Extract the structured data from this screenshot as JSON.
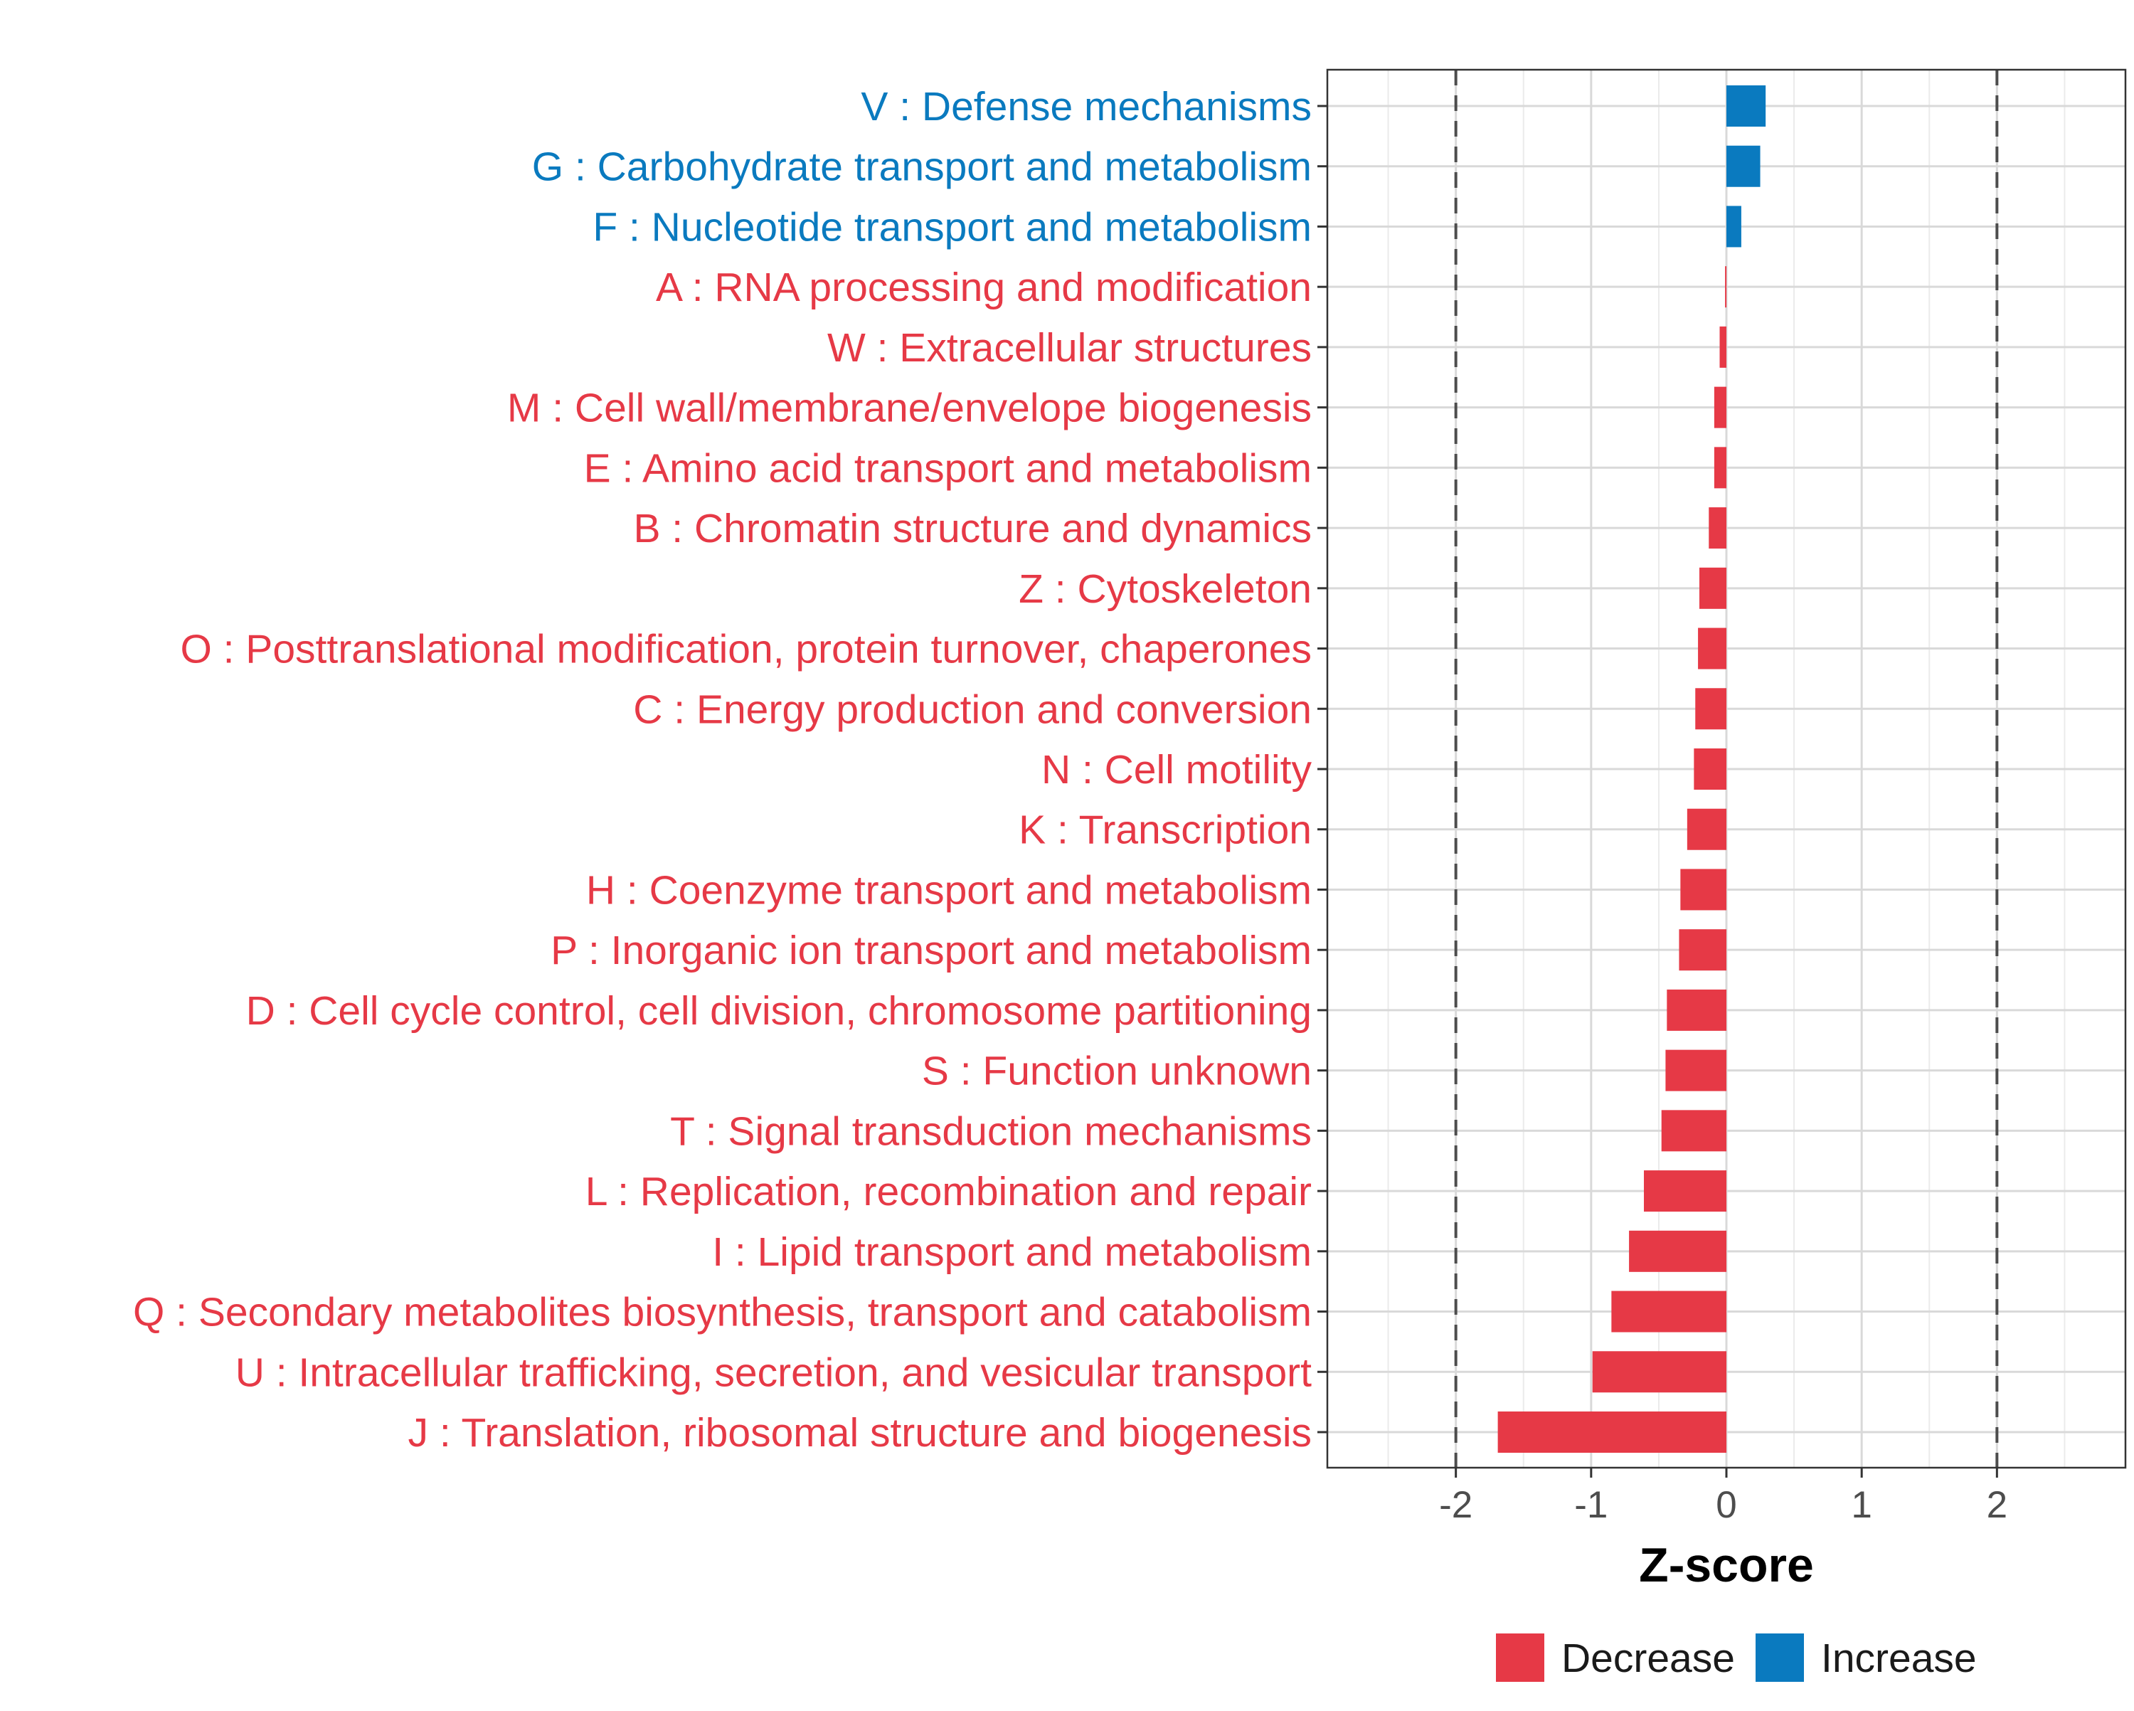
{
  "chart_data": {
    "type": "bar",
    "orientation": "horizontal",
    "xlabel": "Z-score",
    "ylabel": "",
    "xlim": [
      -2.95,
      2.95
    ],
    "xticks": [
      -2,
      -1,
      0,
      1,
      2
    ],
    "xtick_labels": [
      "-2",
      "-1",
      "0",
      "1",
      "2"
    ],
    "reference_lines": [
      -2,
      2
    ],
    "grid": true,
    "legend_position": "bottom",
    "colors": {
      "Decrease": "#E63946",
      "Increase": "#0A7ABF"
    },
    "legend": [
      {
        "name": "Decrease",
        "color": "#E63946"
      },
      {
        "name": "Increase",
        "color": "#0A7ABF"
      }
    ],
    "categories": [
      "V : Defense mechanisms",
      "G : Carbohydrate transport and metabolism",
      "F : Nucleotide transport and metabolism",
      "A : RNA processing and modification",
      "W : Extracellular structures",
      "M : Cell wall/membrane/envelope biogenesis",
      "E : Amino acid transport and metabolism",
      "B : Chromatin structure and dynamics",
      "Z : Cytoskeleton",
      "O : Posttranslational modification, protein turnover, chaperones",
      "C : Energy production and conversion",
      "N : Cell motility",
      "K : Transcription",
      "H : Coenzyme transport and metabolism",
      "P : Inorganic ion transport and metabolism",
      "D : Cell cycle control, cell division, chromosome partitioning",
      "S : Function unknown",
      "T : Signal transduction mechanisms",
      "L : Replication, recombination and repair",
      "I : Lipid transport and metabolism",
      "Q : Secondary metabolites biosynthesis, transport and catabolism",
      "U : Intracellular trafficking, secretion, and vesicular transport",
      "J : Translation, ribosomal structure and biogenesis"
    ],
    "values": [
      0.29,
      0.25,
      0.11,
      -0.01,
      -0.05,
      -0.09,
      -0.09,
      -0.13,
      -0.2,
      -0.21,
      -0.23,
      -0.24,
      -0.29,
      -0.34,
      -0.35,
      -0.44,
      -0.45,
      -0.48,
      -0.61,
      -0.72,
      -0.85,
      -0.99,
      -1.69
    ],
    "direction": [
      "Increase",
      "Increase",
      "Increase",
      "Decrease",
      "Decrease",
      "Decrease",
      "Decrease",
      "Decrease",
      "Decrease",
      "Decrease",
      "Decrease",
      "Decrease",
      "Decrease",
      "Decrease",
      "Decrease",
      "Decrease",
      "Decrease",
      "Decrease",
      "Decrease",
      "Decrease",
      "Decrease",
      "Decrease",
      "Decrease"
    ]
  }
}
